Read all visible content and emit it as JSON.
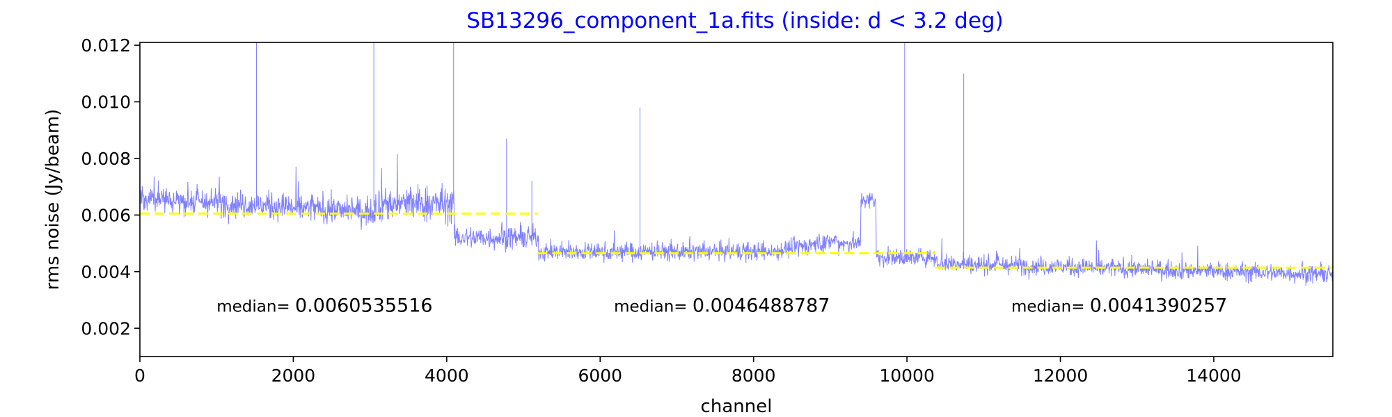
{
  "chart_data": {
    "type": "line",
    "title": "SB13296_component_1a.fits (inside: d < 3.2 deg)",
    "xlabel": "channel",
    "ylabel": "rms noise (Jy/beam)",
    "xlim": [
      0,
      15552
    ],
    "ylim": [
      0.001,
      0.0121
    ],
    "xticks": [
      0,
      2000,
      4000,
      6000,
      8000,
      10000,
      12000,
      14000
    ],
    "xtick_labels": [
      "0",
      "2000",
      "4000",
      "6000",
      "8000",
      "10000",
      "12000",
      "14000"
    ],
    "yticks": [
      0.002,
      0.004,
      0.006,
      0.008,
      0.01,
      0.012
    ],
    "ytick_labels": [
      "0.002",
      "0.004",
      "0.006",
      "0.008",
      "0.010",
      "0.012"
    ],
    "grid": false,
    "colors": {
      "series": "#8080ff",
      "median": "#ffff00",
      "title": "#0000ff"
    },
    "series": [
      {
        "noise_segments": [
          {
            "x_start": 0,
            "x_end": 3060,
            "mean": 0.0063,
            "spread": 0.0006
          },
          {
            "x_start": 3060,
            "x_end": 4100,
            "mean": 0.0064,
            "spread": 0.0008
          },
          {
            "x_start": 4100,
            "x_end": 5200,
            "mean": 0.0052,
            "spread": 0.0005
          },
          {
            "x_start": 5200,
            "x_end": 9100,
            "mean": 0.0048,
            "spread": 0.0004
          },
          {
            "x_start": 9100,
            "x_end": 9400,
            "mean": 0.005,
            "spread": 0.0004
          },
          {
            "x_start": 9400,
            "x_end": 9600,
            "mean": 0.0065,
            "spread": 0.0004
          },
          {
            "x_start": 9600,
            "x_end": 10400,
            "mean": 0.0045,
            "spread": 0.0004
          },
          {
            "x_start": 10400,
            "x_end": 15552,
            "mean": 0.0041,
            "spread": 0.0004
          }
        ],
        "spikes": [
          {
            "x": 1520,
            "y": 0.0121
          },
          {
            "x": 3050,
            "y": 0.0121
          },
          {
            "x": 4090,
            "y": 0.0121
          },
          {
            "x": 4780,
            "y": 0.0087
          },
          {
            "x": 5110,
            "y": 0.0072
          },
          {
            "x": 6520,
            "y": 0.0098
          },
          {
            "x": 9970,
            "y": 0.0121
          },
          {
            "x": 10740,
            "y": 0.011
          }
        ]
      }
    ],
    "medians": [
      {
        "x_start": 0,
        "x_end": 5184,
        "value": 0.0060535516,
        "label_prefix": "median=",
        "label_value": "0.0060535516",
        "label_x": 1000,
        "label_y": 0.00258
      },
      {
        "x_start": 5184,
        "x_end": 10368,
        "value": 0.0046488787,
        "label_prefix": "median=",
        "label_value": "0.0046488787",
        "label_x": 6180,
        "label_y": 0.00258
      },
      {
        "x_start": 10368,
        "x_end": 15552,
        "value": 0.0041390257,
        "label_prefix": "median=",
        "label_value": "0.0041390257",
        "label_x": 11360,
        "label_y": 0.00258
      }
    ]
  }
}
